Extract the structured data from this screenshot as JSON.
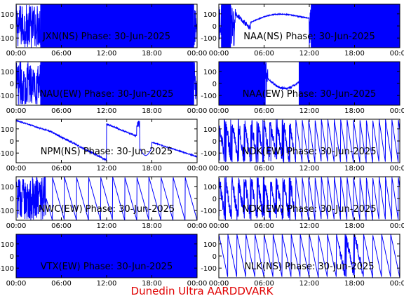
{
  "chart_data": [
    {
      "type": "line",
      "station": "JXN",
      "component": "NS",
      "title": "JXN(NS) Phase: 30-Jun-2025",
      "ylim": [
        -180,
        180
      ],
      "yticks": [
        -100,
        0,
        100
      ],
      "xticks": [
        "00:00",
        "06:00",
        "12:00",
        "18:00",
        "00:00"
      ],
      "pattern": "saturated",
      "color": "#0000ff"
    },
    {
      "type": "line",
      "station": "NAA",
      "component": "NS",
      "title": "NAA(NS) Phase: 30-Jun-2025",
      "ylim": [
        -180,
        180
      ],
      "yticks": [
        -100,
        0,
        100
      ],
      "xticks": [
        "00:00",
        "06:00",
        "12:00",
        "18:00",
        "00:00"
      ],
      "pattern": "naa_ns",
      "color": "#0000ff"
    },
    {
      "type": "line",
      "station": "NAU",
      "component": "EW",
      "title": "NAU(EW) Phase: 30-Jun-2025",
      "ylim": [
        -180,
        180
      ],
      "yticks": [
        -100,
        0,
        100
      ],
      "xticks": [
        "00:00",
        "06:00",
        "12:00",
        "18:00",
        "00:00"
      ],
      "pattern": "saturated",
      "color": "#0000ff"
    },
    {
      "type": "line",
      "station": "NAA",
      "component": "EW",
      "title": "NAA(EW) Phase: 30-Jun-2025",
      "ylim": [
        -180,
        180
      ],
      "yticks": [
        -100,
        0,
        100
      ],
      "xticks": [
        "00:00",
        "06:00",
        "12:00",
        "18:00",
        "00:00"
      ],
      "pattern": "naa_ew",
      "color": "#0000ff"
    },
    {
      "type": "line",
      "station": "NPM",
      "component": "NS",
      "title": "NPM(NS) Phase: 30-Jun-2025",
      "ylim": [
        -180,
        180
      ],
      "yticks": [
        -100,
        0,
        100
      ],
      "xticks": [
        "00:00",
        "06:00",
        "12:00",
        "18:00",
        "00:00"
      ],
      "pattern": "npm_ns",
      "color": "#0000ff"
    },
    {
      "type": "line",
      "station": "NDK",
      "component": "EW",
      "title": "NDK(EW) Phase: 30-Jun-2025",
      "ylim": [
        -180,
        180
      ],
      "yticks": [
        -100,
        0,
        100
      ],
      "xticks": [
        "00:00",
        "06:00",
        "12:00",
        "18:00",
        "00:00"
      ],
      "pattern": "sawtooth_dense",
      "color": "#0000ff"
    },
    {
      "type": "line",
      "station": "NWC",
      "component": "EW",
      "title": "NWC(EW) Phase: 30-Jun-2025",
      "ylim": [
        -180,
        180
      ],
      "yticks": [
        -100,
        0,
        100
      ],
      "xticks": [
        "00:00",
        "06:00",
        "12:00",
        "18:00",
        "00:00"
      ],
      "pattern": "nwc_ew",
      "color": "#0000ff"
    },
    {
      "type": "line",
      "station": "NDK",
      "component": "EW",
      "title": "NDK(EW) Phase: 30-Jun-2025",
      "ylim": [
        -180,
        180
      ],
      "yticks": [
        -100,
        0,
        100
      ],
      "xticks": [
        "00:00",
        "06:00",
        "12:00",
        "18:00",
        "00:00"
      ],
      "pattern": "sawtooth_dense",
      "color": "#0000ff"
    },
    {
      "type": "line",
      "station": "VTX",
      "component": "EW",
      "title": "VTX(EW) Phase: 30-Jun-2025",
      "ylim": [
        -180,
        180
      ],
      "yticks": [
        -100,
        0,
        100
      ],
      "xticks": [
        "00:00",
        "06:00",
        "12:00",
        "18:00",
        "00:00"
      ],
      "pattern": "saturated_full",
      "color": "#0000ff"
    },
    {
      "type": "line",
      "station": "NLK",
      "component": "NS",
      "title": "NLK(NS) Phase: 30-Jun-2025",
      "ylim": [
        -180,
        180
      ],
      "yticks": [
        -100,
        0,
        100
      ],
      "xticks": [
        "00:00",
        "06:00",
        "12:00",
        "18:00",
        "00:00"
      ],
      "pattern": "sawtooth_sparse",
      "color": "#0000ff"
    }
  ],
  "footer": "Dunedin Ultra AARDDVARK",
  "footer_color": "#e00000"
}
